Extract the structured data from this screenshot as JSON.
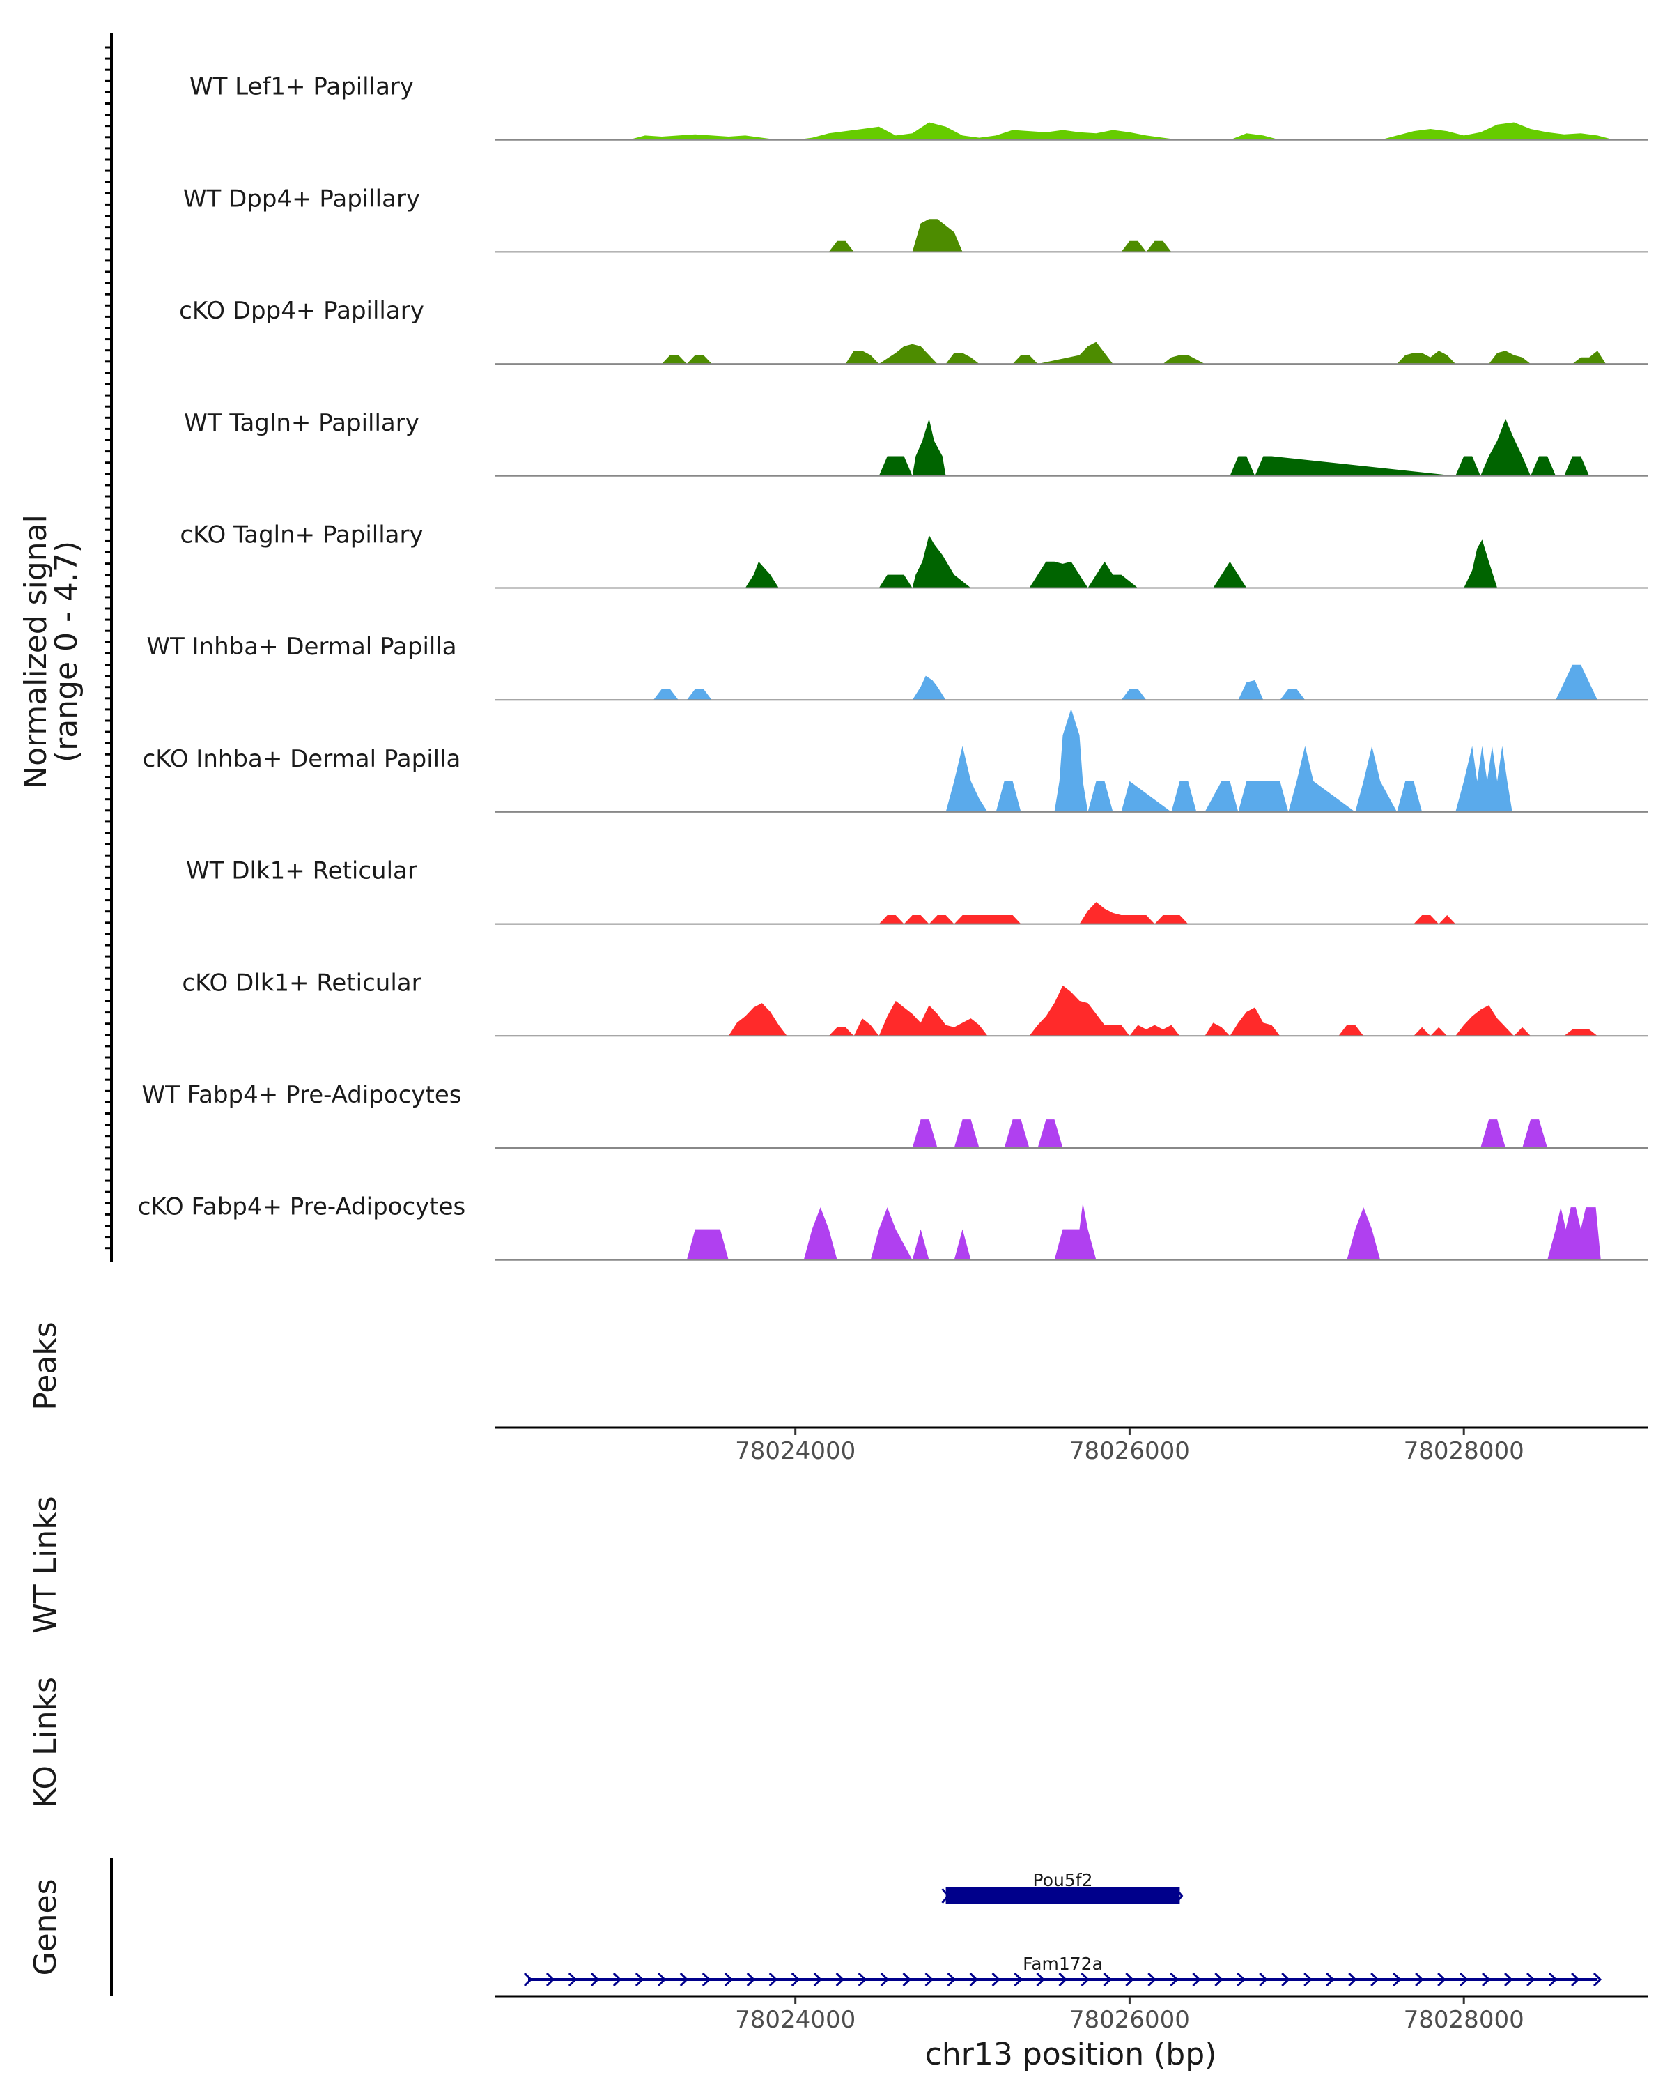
{
  "chart_data": {
    "type": "area",
    "chromosome": "chr13",
    "xlim": [
      78022200,
      78029100
    ],
    "xticks": [
      78024000,
      78026000,
      78028000
    ],
    "xtick_labels": [
      "78024000",
      "78026000",
      "78028000"
    ],
    "xlabel": "chr13 position (bp)",
    "ylabel_line1": "Normalized signal",
    "ylabel_line2": "(range 0 - 4.7)",
    "ylim": [
      0,
      4.7
    ],
    "peaks_label": "Peaks",
    "wt_links_label": "WT Links",
    "ko_links_label": "KO Links",
    "genes_label": "Genes",
    "tracks": [
      {
        "name": "WT Lef1+ Papillary",
        "color": "#66cc00",
        "x": [
          78023000,
          78023100,
          78023200,
          78023300,
          78023400,
          78023500,
          78023600,
          78023700,
          78023800,
          78023900,
          78024000,
          78024100,
          78024200,
          78024300,
          78024400,
          78024500,
          78024600,
          78024700,
          78024800,
          78024900,
          78025000,
          78025100,
          78025200,
          78025300,
          78025400,
          78025500,
          78025600,
          78025700,
          78025800,
          78025900,
          78026000,
          78026100,
          78026200,
          78026300,
          78026400,
          78026500,
          78026600,
          78026700,
          78026800,
          78026900,
          78027000,
          78027100,
          78027200,
          78027300,
          78027400,
          78027500,
          78027600,
          78027700,
          78027800,
          78027900,
          78028000,
          78028100,
          78028200,
          78028300,
          78028400,
          78028500,
          78028600,
          78028700,
          78028800,
          78028900
        ],
        "values": [
          0,
          0.2,
          0.15,
          0.2,
          0.25,
          0.2,
          0.15,
          0.2,
          0.1,
          0,
          0,
          0.1,
          0.3,
          0.4,
          0.5,
          0.6,
          0.2,
          0.3,
          0.8,
          0.6,
          0.2,
          0.1,
          0.2,
          0.45,
          0.4,
          0.35,
          0.45,
          0.35,
          0.3,
          0.45,
          0.35,
          0.2,
          0.1,
          0,
          0,
          0,
          0,
          0.3,
          0.2,
          0,
          0,
          0,
          0,
          0,
          0,
          0,
          0.2,
          0.4,
          0.5,
          0.4,
          0.2,
          0.35,
          0.7,
          0.8,
          0.5,
          0.35,
          0.25,
          0.3,
          0.2,
          0
        ]
      },
      {
        "name": "WT Dpp4+ Papillary",
        "color": "#4d8c00",
        "x": [
          78024200,
          78024250,
          78024300,
          78024350,
          78024700,
          78024750,
          78024800,
          78024850,
          78024900,
          78024950,
          78025000,
          78025050,
          78025950,
          78026000,
          78026050,
          78026100,
          78026150,
          78026200,
          78026250,
          78026300
        ],
        "values": [
          0,
          0.5,
          0.5,
          0,
          0,
          1.3,
          1.5,
          1.5,
          1.2,
          0.9,
          0,
          0,
          0,
          0.5,
          0.5,
          0,
          0.5,
          0.5,
          0,
          0
        ]
      },
      {
        "name": "cKO Dpp4+ Papillary",
        "color": "#4d8c00",
        "x": [
          78023200,
          78023250,
          78023300,
          78023350,
          78023400,
          78023450,
          78023500,
          78024300,
          78024350,
          78024400,
          78024450,
          78024500,
          78024600,
          78024650,
          78024700,
          78024750,
          78024800,
          78024850,
          78024900,
          78024950,
          78025000,
          78025050,
          78025100,
          78025300,
          78025350,
          78025400,
          78025450,
          78025700,
          78025750,
          78025800,
          78025850,
          78025900,
          78026200,
          78026250,
          78026300,
          78026350,
          78026400,
          78026450,
          78027600,
          78027650,
          78027700,
          78027750,
          78027800,
          78027850,
          78027900,
          78027950,
          78028150,
          78028200,
          78028250,
          78028300,
          78028350,
          78028400,
          78028450,
          78028650,
          78028700,
          78028750,
          78028800,
          78028850
        ],
        "values": [
          0,
          0.4,
          0.4,
          0,
          0.4,
          0.4,
          0,
          0,
          0.6,
          0.6,
          0.4,
          0,
          0.5,
          0.8,
          0.9,
          0.8,
          0.4,
          0,
          0,
          0.5,
          0.5,
          0.3,
          0,
          0,
          0.4,
          0.4,
          0,
          0.4,
          0.8,
          1.0,
          0.5,
          0,
          0,
          0.3,
          0.4,
          0.4,
          0.2,
          0,
          0,
          0.4,
          0.5,
          0.5,
          0.3,
          0.6,
          0.4,
          0,
          0,
          0.5,
          0.6,
          0.4,
          0.3,
          0,
          0,
          0,
          0.3,
          0.3,
          0.6,
          0
        ]
      },
      {
        "name": "WT Tagln+ Papillary",
        "color": "#006400",
        "x": [
          78024500,
          78024550,
          78024650,
          78024700,
          78024720,
          78024760,
          78024800,
          78024830,
          78024880,
          78024900,
          78025550,
          78025600,
          78025650,
          78025700,
          78025750,
          78025800,
          78025850,
          78025900,
          78026600,
          78026650,
          78026700,
          78026750,
          78026800,
          78026850,
          78027950,
          78028000,
          78028050,
          78028100,
          78028150,
          78028200,
          78028250,
          78028300,
          78028350,
          78028400,
          78028450,
          78028500,
          78028550,
          78028600,
          78028650,
          78028700,
          78028750
        ],
        "values": [
          0,
          0.9,
          0.9,
          0,
          0.9,
          1.6,
          2.6,
          1.6,
          0.9,
          0,
          0,
          0,
          0,
          0,
          0,
          0,
          0,
          0,
          0,
          0.9,
          0.9,
          0,
          0.9,
          0.9,
          0,
          0.9,
          0.9,
          0,
          0.9,
          1.6,
          2.6,
          1.7,
          0.9,
          0,
          0.9,
          0.9,
          0,
          0,
          0.9,
          0.9,
          0
        ]
      },
      {
        "name": "cKO Tagln+ Papillary",
        "color": "#006400",
        "x": [
          78023700,
          78023750,
          78023780,
          78023850,
          78023900,
          78024500,
          78024550,
          78024650,
          78024700,
          78024720,
          78024760,
          78024800,
          78024830,
          78024880,
          78024950,
          78025050,
          78025400,
          78025450,
          78025500,
          78025550,
          78025600,
          78025650,
          78025700,
          78025750,
          78025800,
          78025850,
          78025900,
          78025950,
          78026050,
          78026500,
          78026550,
          78026600,
          78026650,
          78026700,
          78028000,
          78028050,
          78028080,
          78028110,
          78028150,
          78028200
        ],
        "values": [
          0,
          0.6,
          1.2,
          0.6,
          0,
          0,
          0.6,
          0.6,
          0,
          0.6,
          1.2,
          2.4,
          2.0,
          1.5,
          0.6,
          0,
          0,
          0.6,
          1.2,
          1.2,
          1.1,
          1.2,
          0.6,
          0,
          0.6,
          1.2,
          0.6,
          0.6,
          0,
          0,
          0.6,
          1.2,
          0.6,
          0,
          0,
          0.8,
          1.8,
          2.2,
          1.2,
          0
        ]
      },
      {
        "name": "WT Inhba+ Dermal Papilla",
        "color": "#5aaaeb",
        "x": [
          78023150,
          78023200,
          78023250,
          78023300,
          78023350,
          78023400,
          78023450,
          78023500,
          78024700,
          78024750,
          78024780,
          78024820,
          78024850,
          78024900,
          78025950,
          78026000,
          78026050,
          78026100,
          78026650,
          78026700,
          78026750,
          78026800,
          78026900,
          78026950,
          78027000,
          78027050,
          78028550,
          78028600,
          78028650,
          78028700,
          78028750,
          78028800
        ],
        "values": [
          0,
          0.5,
          0.5,
          0,
          0,
          0.5,
          0.5,
          0,
          0,
          0.6,
          1.1,
          0.9,
          0.6,
          0,
          0,
          0.5,
          0.5,
          0,
          0,
          0.8,
          0.9,
          0,
          0,
          0.5,
          0.5,
          0,
          0,
          0.8,
          1.6,
          1.6,
          0.8,
          0
        ]
      },
      {
        "name": "cKO Inhba+ Dermal Papilla",
        "color": "#5aaaeb",
        "x": [
          78024900,
          78024950,
          78025000,
          78025050,
          78025100,
          78025150,
          78025200,
          78025250,
          78025300,
          78025350,
          78025550,
          78025580,
          78025600,
          78025650,
          78025700,
          78025720,
          78025750,
          78025800,
          78025850,
          78025900,
          78025950,
          78026000,
          78026250,
          78026300,
          78026350,
          78026400,
          78026450,
          78026550,
          78026600,
          78026650,
          78026700,
          78026750,
          78026800,
          78026850,
          78026900,
          78026950,
          78027000,
          78027050,
          78027100,
          78027350,
          78027400,
          78027450,
          78027500,
          78027600,
          78027650,
          78027700,
          78027750,
          78027950,
          78028000,
          78028050,
          78028080,
          78028110,
          78028140,
          78028170,
          78028200,
          78028230,
          78028260,
          78028290,
          78028320,
          78028350,
          78028400
        ],
        "values": [
          0,
          1.4,
          3.0,
          1.4,
          0.6,
          0,
          0,
          1.4,
          1.4,
          0,
          0,
          1.4,
          3.5,
          4.7,
          3.5,
          1.4,
          0,
          1.4,
          1.4,
          0,
          0,
          1.4,
          0,
          1.4,
          1.4,
          0,
          0,
          1.4,
          1.4,
          0,
          1.4,
          1.4,
          1.4,
          1.4,
          1.4,
          0,
          1.4,
          3.0,
          1.4,
          0,
          1.4,
          3.0,
          1.4,
          0,
          1.4,
          1.4,
          0,
          0,
          1.4,
          3.0,
          1.4,
          3.0,
          1.4,
          3.0,
          1.4,
          3.0,
          1.4,
          0,
          0,
          0,
          0
        ]
      },
      {
        "name": "WT Dlk1+ Reticular",
        "color": "#ff2a2a",
        "x": [
          78024500,
          78024550,
          78024600,
          78024650,
          78024700,
          78024750,
          78024800,
          78024850,
          78024900,
          78024950,
          78025000,
          78025050,
          78025100,
          78025150,
          78025200,
          78025250,
          78025300,
          78025350,
          78025700,
          78025750,
          78025800,
          78025850,
          78025900,
          78025950,
          78026000,
          78026050,
          78026100,
          78026150,
          78026200,
          78026250,
          78026300,
          78026350,
          78027700,
          78027750,
          78027800,
          78027850,
          78027900,
          78027950
        ],
        "values": [
          0,
          0.4,
          0.4,
          0,
          0.4,
          0.4,
          0,
          0.4,
          0.4,
          0,
          0.4,
          0.4,
          0.4,
          0.4,
          0.4,
          0.4,
          0.4,
          0,
          0,
          0.6,
          1.0,
          0.7,
          0.5,
          0.4,
          0.4,
          0.4,
          0.4,
          0,
          0.4,
          0.4,
          0.4,
          0,
          0,
          0.4,
          0.4,
          0,
          0.4,
          0
        ]
      },
      {
        "name": "cKO Dlk1+ Reticular",
        "color": "#ff2a2a",
        "x": [
          78023600,
          78023650,
          78023700,
          78023750,
          78023800,
          78023850,
          78023900,
          78023950,
          78024200,
          78024250,
          78024300,
          78024350,
          78024400,
          78024450,
          78024500,
          78024550,
          78024600,
          78024650,
          78024700,
          78024750,
          78024800,
          78024850,
          78024900,
          78024950,
          78025000,
          78025050,
          78025100,
          78025150,
          78025200,
          78025250,
          78025400,
          78025450,
          78025500,
          78025550,
          78025600,
          78025650,
          78025700,
          78025750,
          78025800,
          78025850,
          78025900,
          78025950,
          78026000,
          78026050,
          78026100,
          78026150,
          78026200,
          78026250,
          78026300,
          78026350,
          78026450,
          78026500,
          78026550,
          78026600,
          78026650,
          78026700,
          78026750,
          78026800,
          78026850,
          78026900,
          78026950,
          78027000,
          78027250,
          78027300,
          78027350,
          78027400,
          78027450,
          78027700,
          78027750,
          78027800,
          78027850,
          78027900,
          78027950,
          78028000,
          78028050,
          78028100,
          78028150,
          78028200,
          78028250,
          78028300,
          78028350,
          78028400,
          78028600,
          78028650,
          78028700,
          78028750,
          78028800
        ],
        "values": [
          0,
          0.6,
          0.9,
          1.3,
          1.5,
          1.1,
          0.5,
          0,
          0,
          0.4,
          0.4,
          0,
          0.8,
          0.5,
          0,
          0.9,
          1.6,
          1.3,
          1.0,
          0.6,
          1.4,
          1.0,
          0.5,
          0.4,
          0.6,
          0.8,
          0.5,
          0,
          0,
          0,
          0,
          0.5,
          0.9,
          1.5,
          2.3,
          2.0,
          1.6,
          1.5,
          1.0,
          0.5,
          0.5,
          0.5,
          0,
          0.5,
          0.3,
          0.5,
          0.3,
          0.5,
          0,
          0,
          0,
          0.6,
          0.4,
          0,
          0.6,
          1.1,
          1.3,
          0.6,
          0.5,
          0,
          0,
          0,
          0,
          0.5,
          0.5,
          0,
          0,
          0,
          0.4,
          0,
          0.4,
          0,
          0,
          0.5,
          0.9,
          1.2,
          1.4,
          0.8,
          0.4,
          0,
          0.4,
          0,
          0,
          0.3,
          0.3,
          0.3,
          0
        ]
      },
      {
        "name": "WT Fabp4+ Pre-Adipocytes",
        "color": "#b040f0",
        "x": [
          78024700,
          78024750,
          78024800,
          78024850,
          78024950,
          78025000,
          78025050,
          78025100,
          78025250,
          78025300,
          78025350,
          78025400,
          78025450,
          78025500,
          78025550,
          78025600,
          78028100,
          78028150,
          78028200,
          78028250,
          78028350,
          78028400,
          78028450,
          78028500
        ],
        "values": [
          0,
          1.3,
          1.3,
          0,
          0,
          1.3,
          1.3,
          0,
          0,
          1.3,
          1.3,
          0,
          0,
          1.3,
          1.3,
          0,
          0,
          1.3,
          1.3,
          0,
          0,
          1.3,
          1.3,
          0
        ]
      },
      {
        "name": "cKO Fabp4+ Pre-Adipocytes",
        "color": "#b040f0",
        "x": [
          78023350,
          78023400,
          78023550,
          78023600,
          78024050,
          78024100,
          78024150,
          78024200,
          78024250,
          78024450,
          78024500,
          78024550,
          78024600,
          78024700,
          78024750,
          78024800,
          78024950,
          78025000,
          78025050,
          78025550,
          78025600,
          78025700,
          78025720,
          78025750,
          78025800,
          78027300,
          78027350,
          78027400,
          78027450,
          78027500,
          78028500,
          78028550,
          78028580,
          78028610,
          78028640,
          78028670,
          78028700,
          78028730,
          78028760,
          78028790,
          78028820
        ],
        "values": [
          0,
          1.4,
          1.4,
          0,
          0,
          1.4,
          2.4,
          1.4,
          0,
          0,
          1.4,
          2.4,
          1.4,
          0,
          1.4,
          0,
          0,
          1.4,
          0,
          0,
          1.4,
          1.4,
          2.6,
          1.4,
          0,
          0,
          1.4,
          2.4,
          1.4,
          0,
          0,
          1.4,
          2.4,
          1.4,
          2.4,
          2.4,
          1.4,
          2.4,
          2.4,
          2.4,
          0
        ]
      }
    ],
    "genes": [
      {
        "name": "Pou5f2",
        "start": 78024900,
        "end": 78026300,
        "strand": "+"
      },
      {
        "name": "Fam172a",
        "start": 78022400,
        "end": 78028800,
        "strand": "+"
      }
    ]
  }
}
